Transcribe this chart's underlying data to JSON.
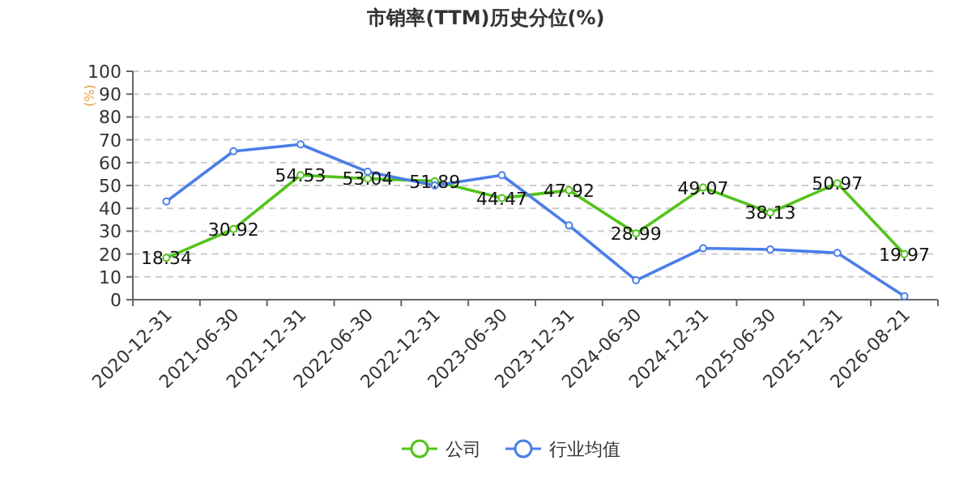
{
  "chart_data": {
    "type": "line",
    "title": "市销率(TTM)历史分位(%)",
    "ylabel": "(%)",
    "categories": [
      "2020-12-31",
      "2021-06-30",
      "2021-12-31",
      "2022-06-30",
      "2022-12-31",
      "2023-06-30",
      "2023-12-31",
      "2024-06-30",
      "2024-12-31",
      "2025-06-30",
      "2025-12-31",
      "2026-08-21"
    ],
    "series": [
      {
        "name": "公司",
        "color": "#52c41a",
        "values": [
          18.34,
          30.92,
          54.53,
          53.04,
          51.89,
          44.47,
          47.92,
          28.99,
          49.07,
          38.13,
          50.97,
          19.97
        ],
        "data_labels": true
      },
      {
        "name": "行业均值",
        "color": "#4a7ee8",
        "values": [
          43,
          65,
          68,
          56,
          50,
          54.5,
          32.5,
          8.5,
          22.5,
          22,
          20.5,
          1.5
        ]
      }
    ],
    "ylim": [
      0,
      100
    ],
    "yticks": [
      0,
      10,
      20,
      30,
      40,
      50,
      60,
      70,
      80,
      90,
      100
    ],
    "grid": "y",
    "legend": "bottom",
    "marker": "circle",
    "line_style": "solid"
  }
}
